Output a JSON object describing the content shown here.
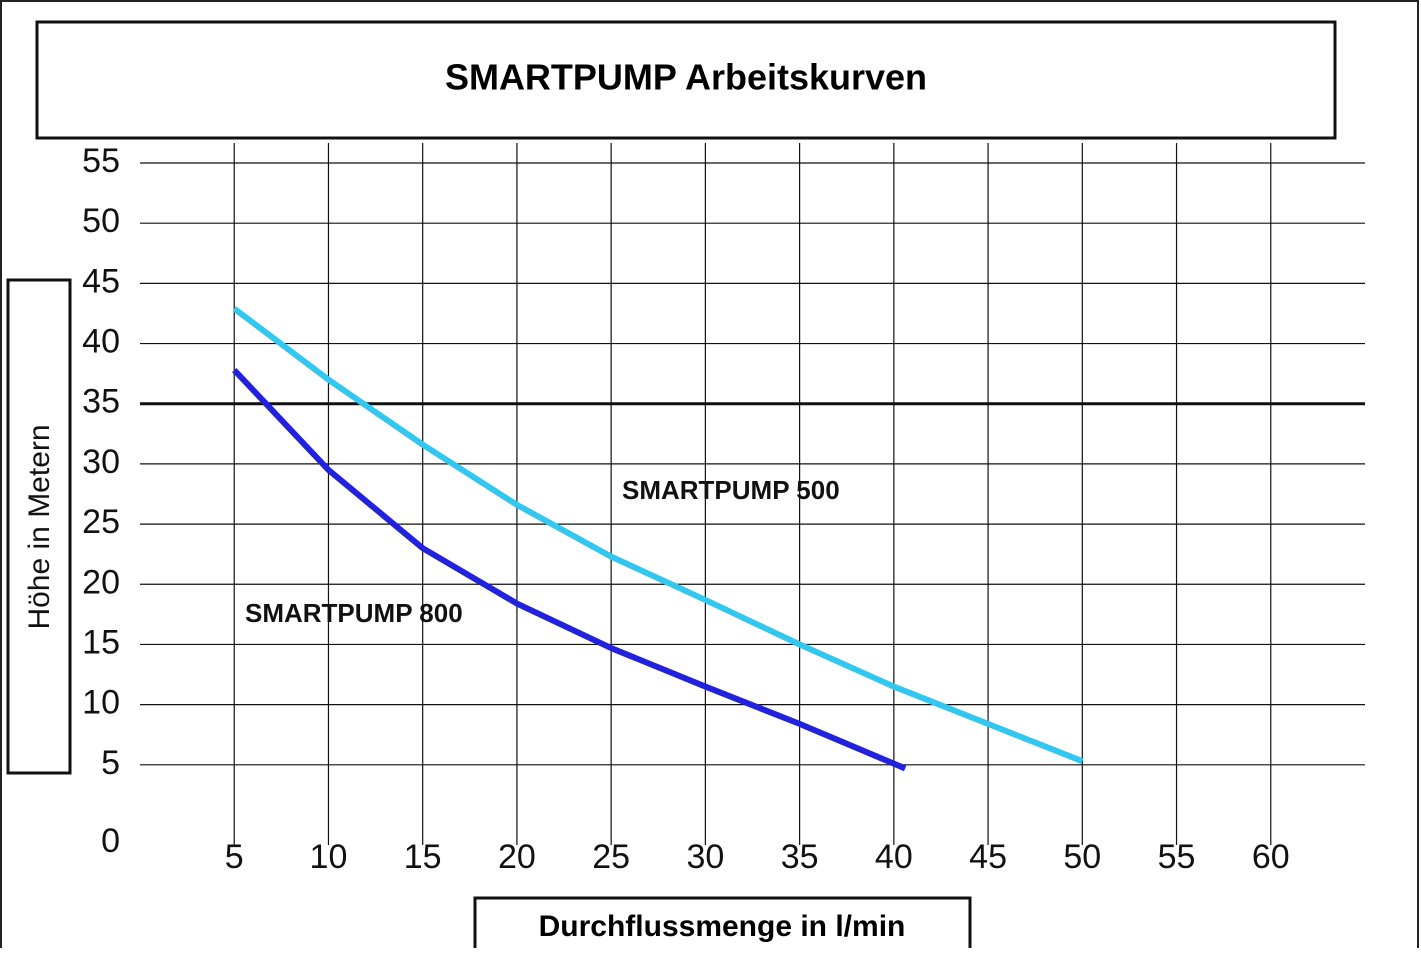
{
  "chart_data": {
    "type": "line",
    "title": "SMARTPUMP Arbeitskurven",
    "x_label": "Durchflussmenge in l/min",
    "y_label": "Höhe in Metern",
    "xlim": [
      0,
      65
    ],
    "ylim": [
      0,
      55
    ],
    "xticks": [
      5,
      10,
      15,
      20,
      25,
      30,
      35,
      40,
      45,
      50,
      55,
      60
    ],
    "yticks": [
      0,
      5,
      10,
      15,
      20,
      25,
      30,
      35,
      40,
      45,
      50,
      55
    ],
    "grid": true,
    "highlight_y": 35,
    "series": [
      {
        "name": "SMARTPUMP 500",
        "color": "#33c6ee",
        "x": [
          5,
          10,
          15,
          20,
          25,
          30,
          35,
          40,
          45,
          50
        ],
        "values": [
          42.9,
          37,
          31.6,
          26.6,
          22.3,
          18.7,
          15,
          11.5,
          8.4,
          5.3
        ]
      },
      {
        "name": "SMARTPUMP 800",
        "color": "#2222dd",
        "x": [
          5,
          10,
          15,
          20,
          25,
          30,
          35,
          40.6
        ],
        "values": [
          37.8,
          29.5,
          23,
          18.4,
          14.7,
          11.5,
          8.4,
          4.7
        ]
      }
    ]
  }
}
